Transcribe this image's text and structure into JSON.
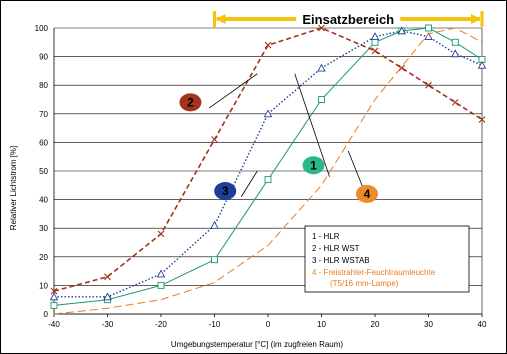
{
  "chart_data": {
    "type": "line",
    "title": "",
    "xlabel": "Umgebungstemperatur [°C] (im zugfreien Raum)",
    "ylabel": "Relativer Lichtstrom [%]",
    "xlim": [
      -40,
      40
    ],
    "ylim": [
      0,
      100
    ],
    "xticks": [
      "-40",
      "-30",
      "-20",
      "-10",
      "0",
      "10",
      "20",
      "30",
      "40"
    ],
    "yticks": [
      "0",
      "10",
      "20",
      "30",
      "40",
      "50",
      "60",
      "70",
      "80",
      "90",
      "100"
    ],
    "grid": "horizontal",
    "range_banner": {
      "label": "Einsatzbereich",
      "from": -10,
      "to": 40
    },
    "series": [
      {
        "id": "1",
        "legend": "1 - HLR",
        "color": "#1a9a6a",
        "marker": "square",
        "points": [
          [
            -40,
            3
          ],
          [
            -30,
            5
          ],
          [
            -20,
            10
          ],
          [
            -10,
            19
          ],
          [
            0,
            47
          ],
          [
            10,
            75
          ],
          [
            20,
            95
          ],
          [
            25,
            99
          ],
          [
            30,
            100
          ],
          [
            35,
            95
          ],
          [
            40,
            89
          ]
        ]
      },
      {
        "id": "2",
        "legend": "2 - HLR WST",
        "color": "#a0341c",
        "marker": "x",
        "points": [
          [
            -40,
            8
          ],
          [
            -30,
            13
          ],
          [
            -20,
            28
          ],
          [
            -10,
            61
          ],
          [
            0,
            94
          ],
          [
            10,
            100
          ],
          [
            20,
            92
          ],
          [
            25,
            86
          ],
          [
            30,
            80
          ],
          [
            35,
            74
          ],
          [
            40,
            68
          ]
        ]
      },
      {
        "id": "3",
        "legend": "3 - HLR WSTAB",
        "color": "#1f3e96",
        "marker": "triangle",
        "points": [
          [
            -40,
            6
          ],
          [
            -30,
            6
          ],
          [
            -20,
            14
          ],
          [
            -10,
            31
          ],
          [
            0,
            70
          ],
          [
            10,
            86
          ],
          [
            20,
            97
          ],
          [
            25,
            99
          ],
          [
            30,
            97
          ],
          [
            35,
            91
          ],
          [
            40,
            87
          ]
        ]
      },
      {
        "id": "4",
        "legend": "4 - Freistrahler-Feuchtraumleuchte",
        "legend_line2": "(T5/16 mm-Lampe)",
        "color": "#ee7b1b",
        "marker": "none",
        "points": [
          [
            -40,
            0
          ],
          [
            -30,
            2
          ],
          [
            -20,
            5
          ],
          [
            -10,
            11
          ],
          [
            0,
            24
          ],
          [
            10,
            45
          ],
          [
            20,
            75
          ],
          [
            30,
            98
          ],
          [
            35,
            100
          ],
          [
            40,
            95
          ]
        ]
      }
    ],
    "series_markers": [
      {
        "label": "1",
        "color": "#2ab88a",
        "x": 8.5,
        "y": 52
      },
      {
        "label": "2",
        "color": "#a0341c",
        "x": -14.5,
        "y": 74
      },
      {
        "label": "3",
        "color": "#1f3e96",
        "x": -8,
        "y": 43
      },
      {
        "label": "4",
        "color": "#ee8a2a",
        "x": 18.5,
        "y": 42
      }
    ]
  }
}
